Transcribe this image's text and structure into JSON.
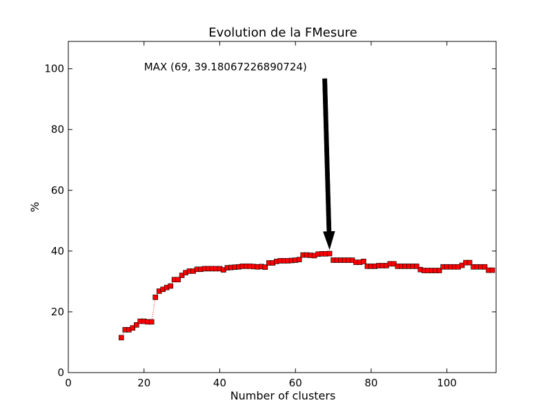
{
  "chart_data": {
    "type": "line",
    "title": "Evolution de la FMesure",
    "xlabel": "Number of clusters",
    "ylabel": "%",
    "xlim": [
      0,
      113
    ],
    "ylim": [
      0,
      109
    ],
    "x_ticks": [
      0,
      20,
      40,
      60,
      80,
      100
    ],
    "y_ticks": [
      0,
      20,
      40,
      60,
      80,
      100
    ],
    "x_tick_labels": [
      "0",
      "20",
      "40",
      "60",
      "80",
      "100"
    ],
    "y_tick_labels": [
      "0",
      "20",
      "40",
      "60",
      "80",
      "100"
    ],
    "grid": false,
    "line_style": "dotted",
    "line_color": "#ff0000",
    "marker": "square",
    "marker_color": "#ff0000",
    "marker_edge_color": "#000000",
    "annotation": {
      "text": "MAX (69, 39.18067226890724)",
      "xy": [
        69,
        39.18067226890724
      ],
      "xytext": [
        20,
        99.5
      ],
      "arrow_color": "#000000"
    },
    "series": [
      {
        "x": [
          14,
          15,
          16,
          17,
          18,
          19,
          20,
          21,
          22,
          23,
          24,
          25,
          26,
          27,
          28,
          29,
          30,
          31,
          32,
          33,
          34,
          35,
          36,
          37,
          38,
          39,
          40,
          41,
          42,
          43,
          44,
          45,
          46,
          47,
          48,
          49,
          50,
          51,
          52,
          53,
          54,
          55,
          56,
          57,
          58,
          59,
          60,
          61,
          62,
          63,
          64,
          65,
          66,
          67,
          68,
          69,
          70,
          71,
          72,
          73,
          74,
          75,
          76,
          77,
          78,
          79,
          80,
          81,
          82,
          83,
          84,
          85,
          86,
          87,
          88,
          89,
          90,
          91,
          92,
          93,
          94,
          95,
          96,
          97,
          98,
          99,
          100,
          101,
          102,
          103,
          104,
          105,
          106,
          107,
          108,
          109,
          110,
          111,
          112
        ],
        "y": [
          11.5,
          14.1,
          14.1,
          14.7,
          15.7,
          16.9,
          16.9,
          16.7,
          16.7,
          24.8,
          26.8,
          27.4,
          28.0,
          28.5,
          30.6,
          30.6,
          32.0,
          32.9,
          33.4,
          33.4,
          34.0,
          34.0,
          34.2,
          34.2,
          34.2,
          34.2,
          34.2,
          33.8,
          34.5,
          34.6,
          34.7,
          34.8,
          35.0,
          35.0,
          35.0,
          34.9,
          34.8,
          34.9,
          34.7,
          36.1,
          36.1,
          36.6,
          36.8,
          36.8,
          36.8,
          36.9,
          37.0,
          37.2,
          38.7,
          38.7,
          38.6,
          38.5,
          39.0,
          39.1,
          39.1,
          39.18,
          37.0,
          37.0,
          37.0,
          37.0,
          37.0,
          37.0,
          36.3,
          36.3,
          36.6,
          35.0,
          35.0,
          35.0,
          35.2,
          35.2,
          35.2,
          35.8,
          35.8,
          35.0,
          35.0,
          35.0,
          35.0,
          35.0,
          35.0,
          33.9,
          33.6,
          33.6,
          33.6,
          33.6,
          33.6,
          34.8,
          34.8,
          34.8,
          34.8,
          34.8,
          35.3,
          36.2,
          36.2,
          34.8,
          34.8,
          34.8,
          34.8,
          33.7,
          33.7
        ]
      }
    ]
  }
}
